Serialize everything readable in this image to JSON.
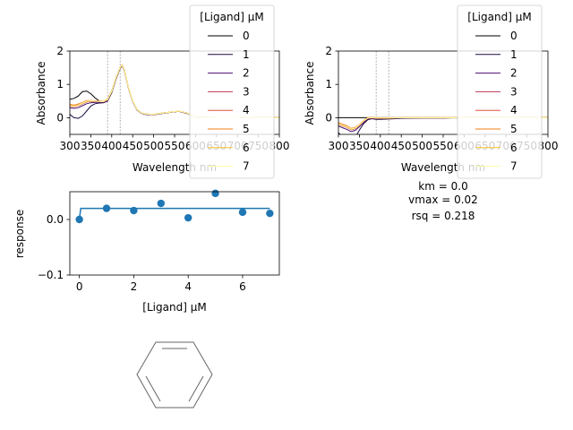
{
  "chart_data": [
    {
      "type": "line",
      "panel": "spectra-raw",
      "xlabel": "Wavelength nm",
      "ylabel": "Absorbance",
      "xlim": [
        300,
        800
      ],
      "ylim": [
        -0.5,
        2
      ],
      "xticks": [
        300,
        350,
        400,
        450,
        500,
        550,
        600,
        650,
        700,
        750,
        800
      ],
      "xtick_labels": [
        "300",
        "350",
        "400",
        "450",
        "500",
        "550",
        "600",
        "650",
        "700",
        "750",
        "800"
      ],
      "yticks": [
        0,
        1,
        2
      ],
      "ytick_labels": [
        "0",
        "1",
        "2"
      ],
      "vlines": [
        390,
        420
      ],
      "legend_title": "[Ligand] µM",
      "series": [
        {
          "name": "0",
          "color": "#000004",
          "x": [
            300,
            310,
            320,
            330,
            340,
            350,
            360,
            370,
            380,
            390,
            400,
            410,
            420,
            425,
            430,
            440,
            450,
            460,
            470,
            480,
            500,
            520,
            540,
            560,
            580,
            600,
            650,
            700,
            750,
            800
          ],
          "y": [
            0.55,
            0.58,
            0.65,
            0.78,
            0.8,
            0.72,
            0.6,
            0.5,
            0.48,
            0.55,
            0.8,
            1.2,
            1.52,
            1.58,
            1.45,
            0.9,
            0.5,
            0.25,
            0.15,
            0.11,
            0.1,
            0.14,
            0.17,
            0.2,
            0.14,
            0.02,
            0.01,
            0.01,
            0.0,
            0.0
          ]
        },
        {
          "name": "1",
          "color": "#1b0c41",
          "x": [
            300,
            310,
            320,
            330,
            340,
            350,
            360,
            370,
            380,
            390,
            400,
            410,
            420,
            425,
            430,
            440,
            450,
            460,
            470,
            480,
            500,
            520,
            540,
            560,
            580,
            600,
            650,
            700,
            750,
            800
          ],
          "y": [
            0.1,
            0.0,
            -0.02,
            0.05,
            0.2,
            0.35,
            0.42,
            0.44,
            0.45,
            0.5,
            0.75,
            1.15,
            1.48,
            1.55,
            1.42,
            0.88,
            0.48,
            0.24,
            0.14,
            0.1,
            0.09,
            0.13,
            0.16,
            0.19,
            0.13,
            0.02,
            0.01,
            0.01,
            0.0,
            0.0
          ]
        },
        {
          "name": "2",
          "color": "#4a0c6b",
          "x": [
            300,
            310,
            320,
            330,
            340,
            350,
            360,
            370,
            380,
            390,
            400,
            410,
            420,
            425,
            430,
            440,
            450,
            460,
            470,
            480,
            500,
            520,
            540,
            560,
            580,
            600,
            650,
            700,
            750,
            800
          ],
          "y": [
            0.3,
            0.28,
            0.3,
            0.36,
            0.42,
            0.45,
            0.46,
            0.46,
            0.46,
            0.52,
            0.77,
            1.17,
            1.5,
            1.56,
            1.43,
            0.89,
            0.49,
            0.24,
            0.14,
            0.1,
            0.09,
            0.13,
            0.16,
            0.19,
            0.13,
            0.02,
            0.01,
            0.01,
            0.0,
            0.0
          ]
        },
        {
          "name": "3",
          "color": "#bc3754",
          "x": [
            300,
            310,
            320,
            330,
            340,
            350,
            360,
            370,
            380,
            390,
            400,
            410,
            420,
            425,
            430,
            440,
            450,
            460,
            470,
            480,
            500,
            520,
            540,
            560,
            580,
            600,
            650,
            700,
            750,
            800
          ],
          "y": [
            0.35,
            0.33,
            0.36,
            0.42,
            0.47,
            0.49,
            0.49,
            0.48,
            0.47,
            0.53,
            0.78,
            1.18,
            1.5,
            1.57,
            1.44,
            0.89,
            0.49,
            0.25,
            0.15,
            0.11,
            0.1,
            0.14,
            0.17,
            0.2,
            0.14,
            0.02,
            0.01,
            0.01,
            0.0,
            0.0
          ]
        },
        {
          "name": "4",
          "color": "#dd513a",
          "x": [
            300,
            310,
            320,
            330,
            340,
            350,
            360,
            370,
            380,
            390,
            400,
            410,
            420,
            425,
            430,
            440,
            450,
            460,
            470,
            480,
            500,
            520,
            540,
            560,
            580,
            600,
            650,
            700,
            750,
            800
          ],
          "y": [
            0.38,
            0.36,
            0.39,
            0.44,
            0.49,
            0.51,
            0.5,
            0.49,
            0.48,
            0.54,
            0.79,
            1.19,
            1.51,
            1.57,
            1.44,
            0.9,
            0.5,
            0.25,
            0.15,
            0.11,
            0.1,
            0.14,
            0.17,
            0.2,
            0.14,
            0.02,
            0.01,
            0.01,
            0.0,
            0.0
          ]
        },
        {
          "name": "5",
          "color": "#f57d15",
          "x": [
            300,
            310,
            320,
            330,
            340,
            350,
            360,
            370,
            380,
            390,
            400,
            410,
            420,
            425,
            430,
            440,
            450,
            460,
            470,
            480,
            500,
            520,
            540,
            560,
            580,
            600,
            650,
            700,
            750,
            800
          ],
          "y": [
            0.4,
            0.38,
            0.41,
            0.46,
            0.51,
            0.52,
            0.51,
            0.5,
            0.49,
            0.55,
            0.8,
            1.2,
            1.52,
            1.58,
            1.45,
            0.9,
            0.5,
            0.25,
            0.15,
            0.11,
            0.1,
            0.14,
            0.17,
            0.2,
            0.14,
            0.02,
            0.01,
            0.01,
            0.0,
            0.0
          ]
        },
        {
          "name": "6",
          "color": "#fac228",
          "x": [
            300,
            310,
            320,
            330,
            340,
            350,
            360,
            370,
            380,
            390,
            400,
            410,
            420,
            425,
            430,
            440,
            450,
            460,
            470,
            480,
            500,
            520,
            540,
            560,
            580,
            600,
            650,
            700,
            750,
            800
          ],
          "y": [
            0.36,
            0.34,
            0.37,
            0.43,
            0.48,
            0.5,
            0.5,
            0.49,
            0.48,
            0.54,
            0.79,
            1.19,
            1.51,
            1.57,
            1.44,
            0.9,
            0.5,
            0.25,
            0.15,
            0.11,
            0.1,
            0.14,
            0.17,
            0.2,
            0.14,
            0.02,
            0.01,
            0.01,
            0.0,
            0.0
          ]
        },
        {
          "name": "7",
          "color": "#fcffa4",
          "x": [
            300,
            310,
            320,
            330,
            340,
            350,
            360,
            370,
            380,
            390,
            400,
            410,
            420,
            425,
            430,
            440,
            450,
            460,
            470,
            480,
            500,
            520,
            540,
            560,
            580,
            600,
            650,
            700,
            750,
            800
          ],
          "y": [
            0.37,
            0.35,
            0.38,
            0.44,
            0.49,
            0.51,
            0.5,
            0.49,
            0.48,
            0.54,
            0.79,
            1.19,
            1.51,
            1.57,
            1.44,
            0.9,
            0.5,
            0.25,
            0.15,
            0.11,
            0.1,
            0.14,
            0.17,
            0.2,
            0.14,
            0.02,
            0.01,
            0.01,
            0.0,
            0.0
          ]
        }
      ]
    },
    {
      "type": "line",
      "panel": "spectra-difference",
      "xlabel": "Wavelength nm",
      "ylabel": "Absorbance",
      "xlim": [
        300,
        800
      ],
      "ylim": [
        -0.5,
        2
      ],
      "xticks": [
        300,
        350,
        400,
        450,
        500,
        550,
        600,
        650,
        700,
        750,
        800
      ],
      "xtick_labels": [
        "300",
        "350",
        "400",
        "450",
        "500",
        "550",
        "600",
        "650",
        "700",
        "750",
        "800"
      ],
      "yticks": [
        0,
        1,
        2
      ],
      "ytick_labels": [
        "0",
        "1",
        "2"
      ],
      "vlines": [
        390,
        420
      ],
      "legend_title": "[Ligand] µM",
      "series": [
        {
          "name": "0",
          "color": "#000004",
          "x": [
            300,
            310,
            320,
            330,
            340,
            350,
            360,
            370,
            380,
            390,
            400,
            420,
            450,
            500,
            550,
            600,
            650,
            700,
            750,
            800
          ],
          "y": [
            0,
            0,
            0,
            0,
            0,
            0,
            0,
            0,
            0,
            0,
            0,
            0,
            0,
            0,
            0,
            0,
            0,
            0,
            0,
            0
          ]
        },
        {
          "name": "1",
          "color": "#1b0c41",
          "x": [
            300,
            310,
            320,
            330,
            340,
            350,
            360,
            370,
            380,
            390,
            400,
            420,
            450,
            500,
            550,
            600,
            650,
            700,
            750,
            800
          ],
          "y": [
            -0.45,
            -0.58,
            -0.67,
            -0.73,
            -0.6,
            -0.37,
            -0.18,
            -0.06,
            -0.03,
            -0.05,
            -0.05,
            -0.04,
            -0.02,
            -0.01,
            -0.01,
            0,
            0,
            0,
            0,
            0
          ]
        },
        {
          "name": "2",
          "color": "#4a0c6b",
          "x": [
            300,
            310,
            320,
            330,
            340,
            350,
            360,
            370,
            380,
            390,
            400,
            420,
            450,
            500,
            550,
            600,
            650,
            700,
            750,
            800
          ],
          "y": [
            -0.25,
            -0.3,
            -0.35,
            -0.42,
            -0.38,
            -0.27,
            -0.14,
            -0.04,
            -0.02,
            -0.03,
            -0.03,
            -0.02,
            -0.01,
            -0.01,
            -0.01,
            0,
            0,
            0,
            0,
            0
          ]
        },
        {
          "name": "3",
          "color": "#bc3754",
          "x": [
            300,
            310,
            320,
            330,
            340,
            350,
            360,
            370,
            380,
            390,
            400,
            420,
            450,
            500,
            550,
            600,
            650,
            700,
            750,
            800
          ],
          "y": [
            -0.2,
            -0.25,
            -0.29,
            -0.36,
            -0.33,
            -0.23,
            -0.11,
            -0.02,
            -0.01,
            -0.02,
            -0.02,
            -0.02,
            0,
            0,
            0,
            0,
            0,
            0,
            0,
            0
          ]
        },
        {
          "name": "4",
          "color": "#dd513a",
          "x": [
            300,
            310,
            320,
            330,
            340,
            350,
            360,
            370,
            380,
            390,
            400,
            420,
            450,
            500,
            550,
            600,
            650,
            700,
            750,
            800
          ],
          "y": [
            -0.17,
            -0.22,
            -0.26,
            -0.34,
            -0.31,
            -0.21,
            -0.1,
            -0.01,
            0,
            -0.01,
            -0.01,
            -0.01,
            0,
            0,
            0,
            0,
            0,
            0,
            0,
            0
          ]
        },
        {
          "name": "5",
          "color": "#f57d15",
          "x": [
            300,
            310,
            320,
            330,
            340,
            350,
            360,
            370,
            380,
            390,
            400,
            420,
            450,
            500,
            550,
            600,
            650,
            700,
            750,
            800
          ],
          "y": [
            -0.15,
            -0.2,
            -0.24,
            -0.32,
            -0.29,
            -0.2,
            -0.09,
            0,
            0.01,
            0,
            0,
            0,
            0,
            0,
            0,
            0,
            0,
            0,
            0,
            0
          ]
        },
        {
          "name": "6",
          "color": "#fac228",
          "x": [
            300,
            310,
            320,
            330,
            340,
            350,
            360,
            370,
            380,
            390,
            400,
            420,
            450,
            500,
            550,
            600,
            650,
            700,
            750,
            800
          ],
          "y": [
            -0.19,
            -0.24,
            -0.28,
            -0.35,
            -0.32,
            -0.22,
            -0.1,
            -0.01,
            0,
            -0.01,
            -0.01,
            -0.01,
            0,
            0,
            0,
            0,
            0,
            0,
            0,
            0
          ]
        },
        {
          "name": "7",
          "color": "#fcffa4",
          "x": [
            300,
            310,
            320,
            330,
            340,
            350,
            360,
            370,
            380,
            390,
            400,
            420,
            450,
            500,
            550,
            600,
            650,
            700,
            750,
            800
          ],
          "y": [
            -0.18,
            -0.23,
            -0.27,
            -0.34,
            -0.31,
            -0.21,
            -0.1,
            -0.01,
            0,
            -0.01,
            -0.01,
            -0.01,
            0,
            0,
            0,
            0,
            0,
            0,
            0,
            0
          ]
        }
      ]
    },
    {
      "type": "scatter",
      "panel": "binding-response",
      "xlabel": "[Ligand] µM",
      "ylabel": "response",
      "xlim": [
        -0.35,
        7.35
      ],
      "ylim": [
        -0.1,
        0.05
      ],
      "xticks": [
        0,
        2,
        4,
        6
      ],
      "xtick_labels": [
        "0",
        "2",
        "4",
        "6"
      ],
      "yticks": [
        -0.1,
        0.0
      ],
      "ytick_labels": [
        "−0.1",
        "0.0"
      ],
      "point_color": "#1f77b4",
      "points": {
        "x": [
          0,
          1,
          2,
          3,
          4,
          5,
          6,
          7
        ],
        "y": [
          0.0,
          0.02,
          0.016,
          0.029,
          0.003,
          0.047,
          0.013,
          0.011
        ]
      },
      "fit": {
        "x": [
          0,
          0.05,
          0.1,
          0.2,
          0.5,
          1,
          2,
          3,
          4,
          5,
          6,
          7
        ],
        "y": [
          0,
          0.02,
          0.02,
          0.02,
          0.02,
          0.02,
          0.02,
          0.02,
          0.02,
          0.02,
          0.02,
          0.02
        ]
      },
      "stats": [
        "km = 0.0",
        "vmax = 0.02",
        "rsq = 0.218"
      ]
    }
  ]
}
